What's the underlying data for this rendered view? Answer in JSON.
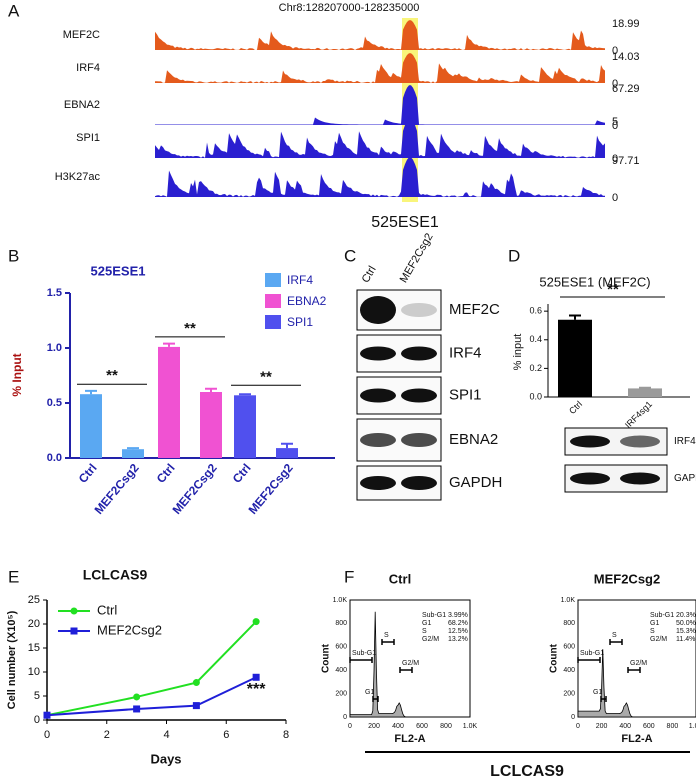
{
  "panel_labels": [
    "A",
    "B",
    "C",
    "D",
    "E",
    "F"
  ],
  "tracks": {
    "region": "Chr8:128207000-128235000",
    "element": "525ESE1",
    "rows": [
      {
        "name": "MEF2C",
        "max": 18.99,
        "min": 0
      },
      {
        "name": "IRF4",
        "max": 14.03,
        "min": 0
      },
      {
        "name": "EBNA2",
        "max": 67.29,
        "min": 0
      },
      {
        "name": "SPI1",
        "max": 5,
        "min": 0
      },
      {
        "name": "H3K27ac",
        "max": 97.71,
        "min": 0
      }
    ]
  },
  "blot_c": {
    "lanes": [
      "Ctrl",
      "MEF2Csg2"
    ],
    "proteins": [
      "MEF2C",
      "IRF4",
      "SPI1",
      "EBNA2",
      "GAPDH"
    ]
  },
  "blot_d": {
    "lanes": [
      "Ctrl",
      "IRF4sg1"
    ],
    "proteins": [
      "IRF4",
      "GAPDH"
    ]
  },
  "flow": {
    "x_label": "FL2-A",
    "y_label": "Count",
    "ticks": [
      "0",
      "200",
      "400",
      "600",
      "800",
      "1.0K"
    ],
    "footer": "LCLCAS9",
    "panels": [
      {
        "title": "Ctrl",
        "stats": [
          [
            "Sub-G1",
            "3.99%"
          ],
          [
            "G1",
            "68.2%"
          ],
          [
            "S",
            "12.5%"
          ],
          [
            "G2/M",
            "13.2%"
          ]
        ],
        "gates": [
          "Sub-G1",
          "S",
          "G2/M",
          "G1"
        ]
      },
      {
        "title": "MEF2Csg2",
        "stats": [
          [
            "Sub-G1",
            "20.3%"
          ],
          [
            "G1",
            "50.0%"
          ],
          [
            "S",
            "15.3%"
          ],
          [
            "G2/M",
            "11.4%"
          ]
        ],
        "gates": [
          "Sub-G1",
          "S",
          "G2/M",
          "G1"
        ]
      }
    ]
  },
  "chart_data": [
    {
      "type": "grouped_bar",
      "title": "525ESE1",
      "y_label": "% Input",
      "categories": [
        "Ctrl",
        "MEF2Csg2"
      ],
      "series": [
        {
          "name": "IRF4",
          "color": "#5aa8f2",
          "values": [
            0.58,
            0.08
          ],
          "errors": [
            0.03,
            0.01
          ]
        },
        {
          "name": "EBNA2",
          "color": "#f052d2",
          "values": [
            1.01,
            0.6
          ],
          "errors": [
            0.03,
            0.03
          ]
        },
        {
          "name": "SPI1",
          "color": "#5050ee",
          "values": [
            0.57,
            0.09
          ],
          "errors": [
            0.01,
            0.04
          ]
        }
      ],
      "ylim": [
        0,
        1.5
      ],
      "yticks": [
        {
          "value": 0,
          "label": "0.0"
        },
        {
          "value": 0.5,
          "label": "0.5"
        },
        {
          "value": 1,
          "label": "1.0"
        },
        {
          "value": 1.5,
          "label": "1.5"
        }
      ],
      "annotations": [
        "**",
        "**",
        "**"
      ]
    },
    {
      "type": "bar",
      "title": "525ESE1 (MEF2C)",
      "y_label": "% input",
      "categories": [
        "Ctrl",
        "IRF4sg1"
      ],
      "values": [
        0.54,
        0.06
      ],
      "errors": [
        0.03,
        0.005
      ],
      "colors": [
        "#000000",
        "#9a9a9a"
      ],
      "ylim": [
        0,
        0.65
      ],
      "yticks": [
        {
          "value": 0,
          "label": "0.0"
        },
        {
          "value": 0.2,
          "label": "0.2"
        },
        {
          "value": 0.4,
          "label": "0.4"
        },
        {
          "value": 0.6,
          "label": "0.6"
        }
      ],
      "annotations": [
        "**"
      ]
    },
    {
      "type": "line",
      "title": "LCLCAS9",
      "x_label": "Days",
      "y_label": "Cell number (X10⁵)",
      "x": [
        0,
        3,
        5,
        7
      ],
      "series": [
        {
          "name": "Ctrl",
          "color": "#22e022",
          "values": [
            1,
            4.8,
            7.8,
            20.5
          ]
        },
        {
          "name": "MEF2Csg2",
          "color": "#1f1fd8",
          "values": [
            1,
            2.3,
            3,
            8.9
          ]
        }
      ],
      "xlim": [
        0,
        8
      ],
      "xticks": [
        0,
        2,
        4,
        6,
        8
      ],
      "ylim": [
        0,
        25
      ],
      "yticks": [
        0,
        5,
        10,
        15,
        20,
        25
      ],
      "annotations": [
        "***"
      ]
    }
  ]
}
